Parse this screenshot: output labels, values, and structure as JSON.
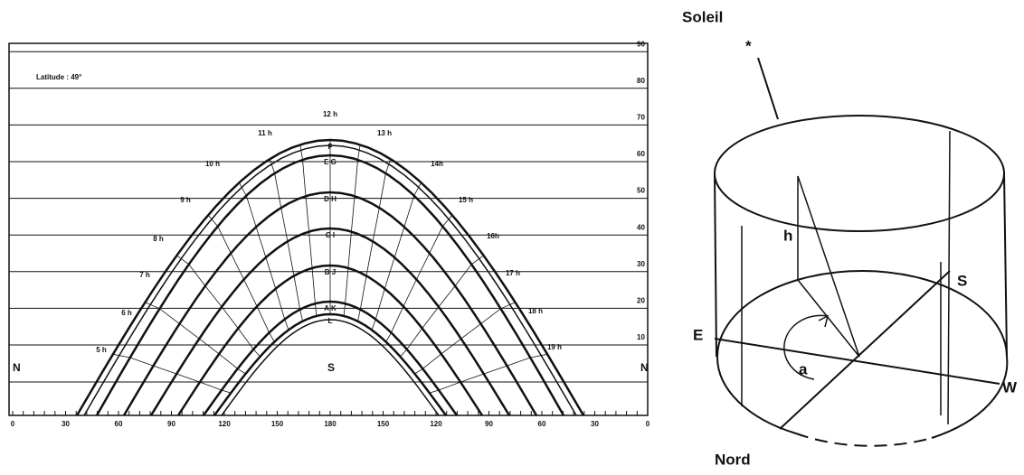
{
  "sun_chart": {
    "latitude": "Latitude : 49°",
    "y_ticks": [
      "10",
      "20",
      "30",
      "40",
      "50",
      "60",
      "70",
      "80",
      "90"
    ],
    "x_ticks": [
      "0",
      "30",
      "60",
      "90",
      "120",
      "150",
      "180",
      "150",
      "120",
      "90",
      "60",
      "30",
      "0"
    ],
    "hours": [
      "5 h",
      "6 h",
      "7 h",
      "8 h",
      "9 h",
      "10 h",
      "11 h",
      "12 h",
      "13 h",
      "14h",
      "15 h",
      "16h",
      "17 h",
      "18 h",
      "19 h"
    ],
    "curve_letters": [
      "F",
      "E G",
      "D H",
      "C I",
      "B J",
      "A K",
      "L"
    ],
    "north_left": "N",
    "south": "S",
    "north_right": "N"
  },
  "cylinder": {
    "sun": "Soleil",
    "star": "*",
    "height": "h",
    "south": "S",
    "east": "E",
    "west": "W",
    "azimuth": "a",
    "north": "Nord"
  }
}
